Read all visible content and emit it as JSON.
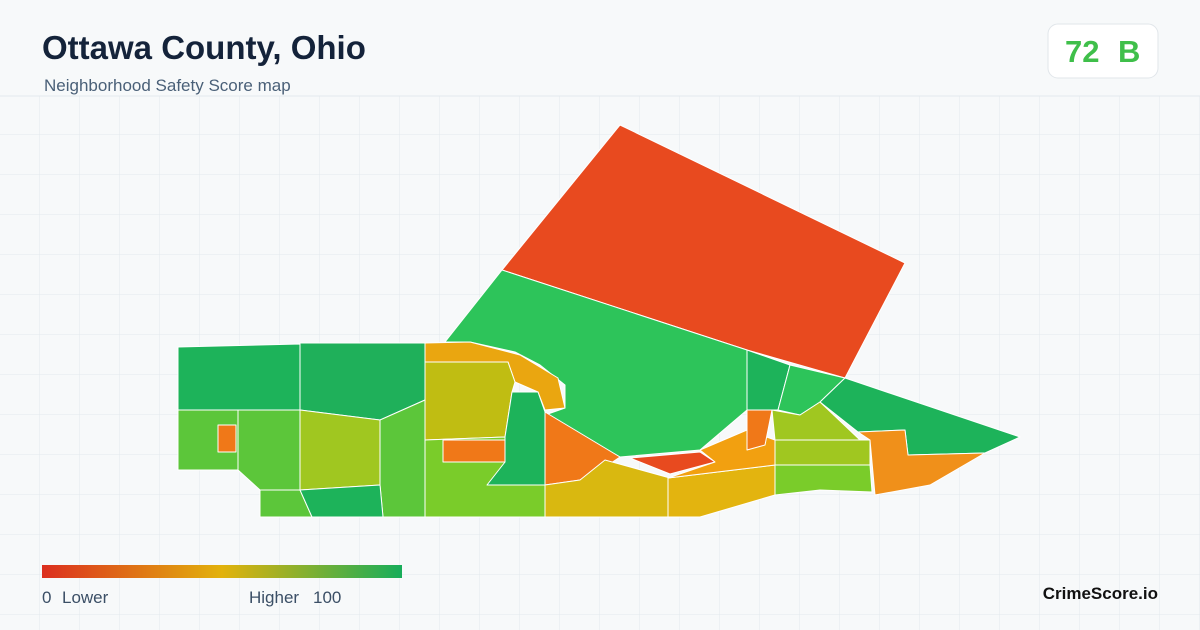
{
  "header": {
    "title": "Ottawa County, Ohio",
    "subtitle": "Neighborhood Safety Score map"
  },
  "score": {
    "value": 72,
    "grade": "B"
  },
  "legend": {
    "min": 0,
    "min_label": "Lower",
    "max_label": "Higher",
    "max": 100
  },
  "brand": "CrimeScore.io"
}
